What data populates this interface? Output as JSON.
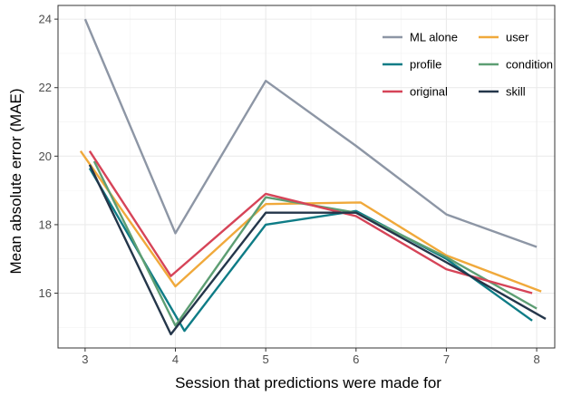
{
  "chart_data": {
    "type": "line",
    "title": "",
    "xlabel": "Session that predictions were made for",
    "ylabel": "Mean absolute error (MAE)",
    "xlim": [
      2.7,
      8.2
    ],
    "ylim": [
      14.4,
      24.4
    ],
    "xticks": [
      3,
      4,
      5,
      6,
      7,
      8
    ],
    "yticks": [
      16,
      18,
      20,
      22,
      24
    ],
    "grid": true,
    "legend_position": "top-right",
    "series": [
      {
        "name": "ML alone",
        "color": "#8d96a5",
        "x": [
          3,
          4,
          5,
          6,
          7,
          8
        ],
        "y": [
          24.0,
          17.75,
          22.2,
          20.3,
          18.3,
          17.35
        ]
      },
      {
        "name": "user",
        "color": "#f0a93b",
        "x": [
          2.95,
          4,
          5,
          6.05,
          7,
          8.05
        ],
        "y": [
          20.15,
          16.2,
          18.6,
          18.65,
          17.1,
          16.05
        ]
      },
      {
        "name": "profile",
        "color": "#0e7c86",
        "x": [
          3.05,
          4.1,
          5,
          6,
          7,
          7.95
        ],
        "y": [
          19.65,
          14.9,
          18.0,
          18.4,
          17.0,
          15.2
        ]
      },
      {
        "name": "condition",
        "color": "#5d9e73",
        "x": [
          3.1,
          4,
          5,
          6,
          7,
          8.0
        ],
        "y": [
          19.85,
          15.05,
          18.8,
          18.35,
          17.05,
          15.55
        ]
      },
      {
        "name": "original",
        "color": "#d64458",
        "x": [
          3.05,
          3.95,
          5,
          6,
          7,
          7.95
        ],
        "y": [
          20.15,
          16.5,
          18.9,
          18.25,
          16.7,
          16.0
        ]
      },
      {
        "name": "skill",
        "color": "#24364a",
        "x": [
          3.05,
          3.95,
          5,
          6,
          7,
          8.1
        ],
        "y": [
          19.75,
          14.8,
          18.35,
          18.35,
          16.9,
          15.25
        ]
      }
    ]
  }
}
